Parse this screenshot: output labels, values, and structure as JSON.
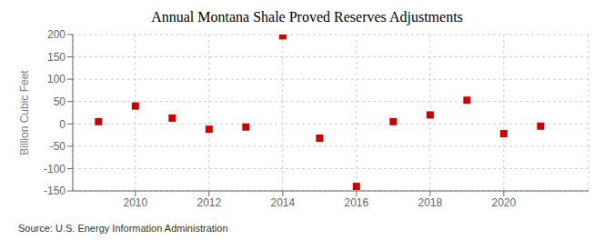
{
  "chart_data": {
    "type": "scatter",
    "title": "Annual Montana Shale Proved Reserves Adjustments",
    "ylabel": "Billion Cubic Feet",
    "annotation": "Source: U.S. Energy Information Administration",
    "x": [
      2009,
      2010,
      2011,
      2012,
      2013,
      2014,
      2015,
      2016,
      2017,
      2018,
      2019,
      2020,
      2021
    ],
    "values": [
      5,
      40,
      13,
      -12,
      -7,
      197,
      -32,
      -140,
      5,
      20,
      53,
      -22,
      -5
    ],
    "color": "#cc0000",
    "marker": "square",
    "xlim": [
      2008.3,
      2022.3
    ],
    "xticks": [
      2010,
      2012,
      2014,
      2016,
      2018,
      2020
    ],
    "ylim": [
      -150,
      200
    ],
    "yticks": [
      -150,
      -100,
      -50,
      0,
      50,
      100,
      150,
      200
    ],
    "grid": true
  }
}
